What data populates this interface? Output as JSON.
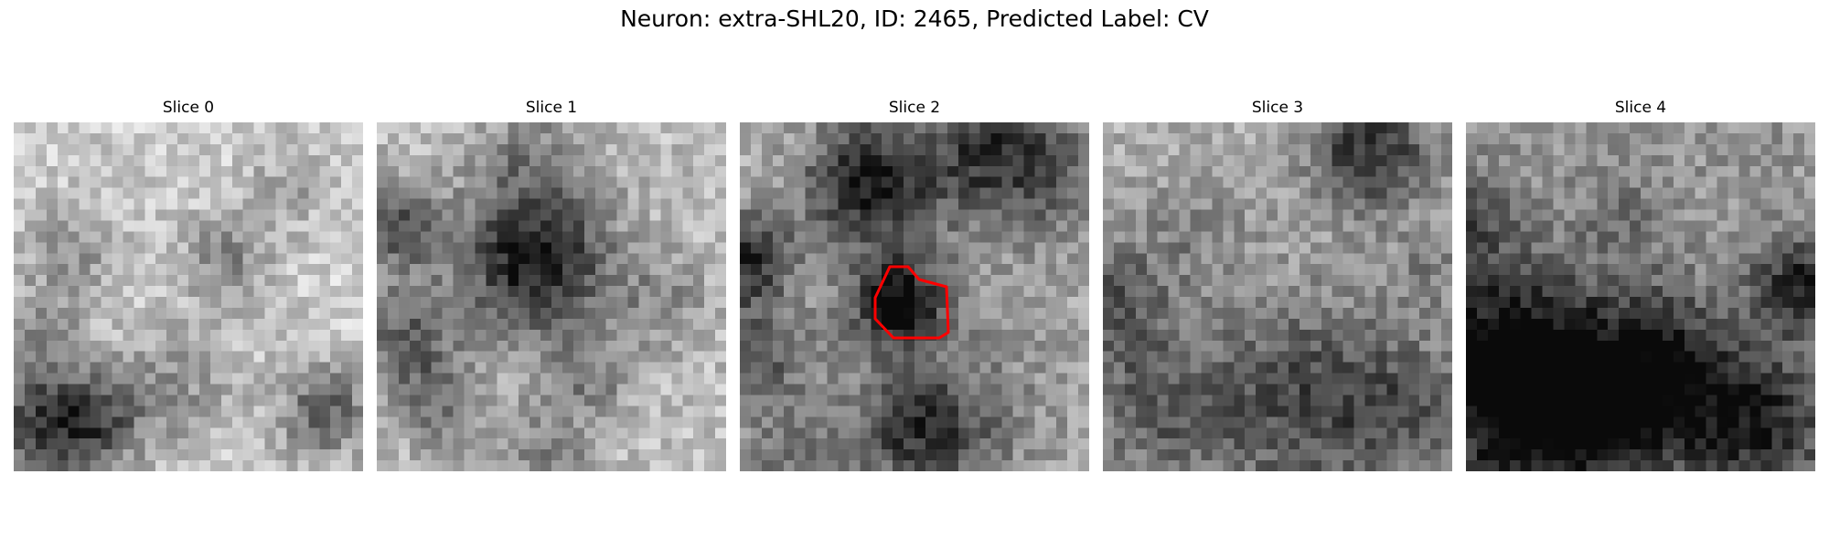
{
  "figure": {
    "title": "Neuron: extra-SHL20, ID: 2465, Predicted Label: CV"
  },
  "slices": [
    {
      "title": "Slice 0"
    },
    {
      "title": "Slice 1"
    },
    {
      "title": "Slice 2"
    },
    {
      "title": "Slice 3"
    },
    {
      "title": "Slice 4"
    }
  ],
  "colormap": "gray",
  "contour": {
    "slice_index": 2,
    "color": "#ff0000"
  }
}
